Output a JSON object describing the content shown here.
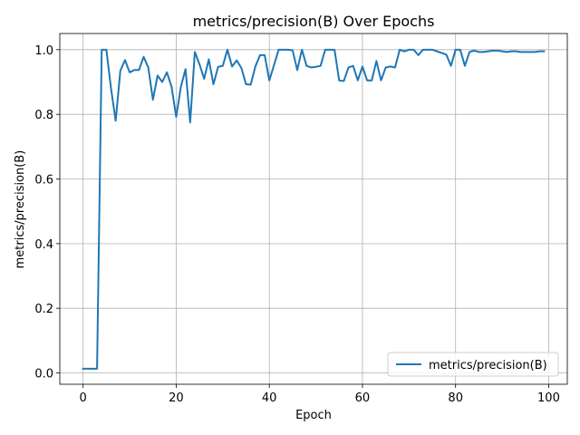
{
  "chart_data": {
    "type": "line",
    "title": "metrics/precision(B) Over Epochs",
    "xlabel": "Epoch",
    "ylabel": "metrics/precision(B)",
    "xlim": [
      -5,
      104
    ],
    "ylim": [
      -0.035,
      1.05
    ],
    "xticks": [
      0,
      20,
      40,
      60,
      80,
      100
    ],
    "yticks": [
      0.0,
      0.2,
      0.4,
      0.6,
      0.8,
      1.0
    ],
    "ytick_labels": [
      "0.0",
      "0.2",
      "0.4",
      "0.6",
      "0.8",
      "1.0"
    ],
    "grid": true,
    "legend_position": "lower-right",
    "series": [
      {
        "name": "metrics/precision(B)",
        "color": "#1f77b4",
        "x": [
          0,
          1,
          2,
          3,
          4,
          5,
          6,
          7,
          8,
          9,
          10,
          11,
          12,
          13,
          14,
          15,
          16,
          17,
          18,
          19,
          20,
          21,
          22,
          23,
          24,
          25,
          26,
          27,
          28,
          29,
          30,
          31,
          32,
          33,
          34,
          35,
          36,
          37,
          38,
          39,
          40,
          41,
          42,
          43,
          44,
          45,
          46,
          47,
          48,
          49,
          50,
          51,
          52,
          53,
          54,
          55,
          56,
          57,
          58,
          59,
          60,
          61,
          62,
          63,
          64,
          65,
          66,
          67,
          68,
          69,
          70,
          71,
          72,
          73,
          74,
          75,
          76,
          77,
          78,
          79,
          80,
          81,
          82,
          83,
          84,
          85,
          86,
          87,
          88,
          89,
          90,
          91,
          92,
          93,
          94,
          95,
          96,
          97,
          98,
          99
        ],
        "values": [
          0.013,
          0.013,
          0.013,
          0.013,
          1.0,
          1.0,
          0.88,
          0.78,
          0.935,
          0.968,
          0.93,
          0.937,
          0.937,
          0.978,
          0.945,
          0.845,
          0.92,
          0.9,
          0.93,
          0.885,
          0.792,
          0.885,
          0.94,
          0.775,
          0.993,
          0.955,
          0.91,
          0.97,
          0.893,
          0.947,
          0.95,
          1.0,
          0.948,
          0.967,
          0.943,
          0.893,
          0.892,
          0.948,
          0.983,
          0.983,
          0.905,
          0.952,
          1.0,
          1.0,
          1.0,
          0.998,
          0.937,
          1.0,
          0.95,
          0.945,
          0.947,
          0.95,
          1.0,
          1.0,
          1.0,
          0.905,
          0.903,
          0.945,
          0.95,
          0.905,
          0.948,
          0.905,
          0.905,
          0.965,
          0.905,
          0.945,
          0.948,
          0.945,
          1.0,
          0.995,
          1.0,
          1.0,
          0.983,
          1.0,
          1.0,
          1.0,
          0.995,
          0.99,
          0.985,
          0.95,
          1.0,
          1.0,
          0.95,
          0.993,
          0.997,
          0.993,
          0.993,
          0.995,
          0.997,
          0.997,
          0.995,
          0.993,
          0.995,
          0.995,
          0.993,
          0.993,
          0.993,
          0.993,
          0.995,
          0.995
        ]
      }
    ]
  }
}
